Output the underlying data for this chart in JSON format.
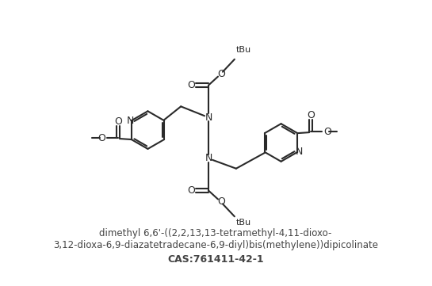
{
  "title_line1": "dimethyl 6,6'-((2,2,13,13-tetramethyl-4,11-dioxo-",
  "title_line2": "3,12-dioxa-6,9-diazatetradecane-6,9-diyl)bis(methylene))dipicolinate",
  "title_line3": "CAS:761411-42-1",
  "bg_color": "#ffffff",
  "line_color": "#2a2a2a",
  "text_color": "#444444",
  "lw": 1.5
}
